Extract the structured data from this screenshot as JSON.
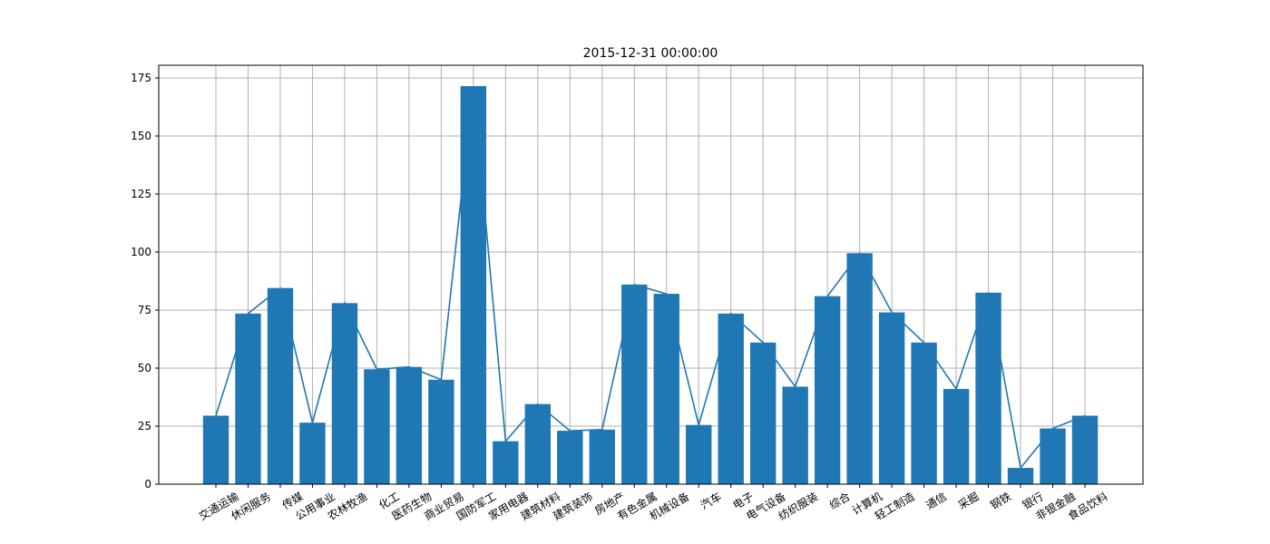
{
  "chart_data": {
    "type": "bar",
    "title": "2015-12-31 00:00:00",
    "xlabel": "",
    "ylabel": "",
    "categories": [
      "交通运输",
      "休闲服务",
      "传媒",
      "公用事业",
      "农林牧渔",
      "化工",
      "医药生物",
      "商业贸易",
      "国防军工",
      "家用电器",
      "建筑材料",
      "建筑装饰",
      "房地产",
      "有色金属",
      "机械设备",
      "汽车",
      "电子",
      "电气设备",
      "纺织服装",
      "综合",
      "计算机",
      "轻工制造",
      "通信",
      "采掘",
      "钢铁",
      "银行",
      "非银金融",
      "食品饮料"
    ],
    "values": [
      29.5,
      73.5,
      84.5,
      26.5,
      78.0,
      49.5,
      50.5,
      45.0,
      171.5,
      18.5,
      34.5,
      23.0,
      23.5,
      86.0,
      82.0,
      25.5,
      73.5,
      61.0,
      42.0,
      81.0,
      99.5,
      74.0,
      61.0,
      41.0,
      82.5,
      7.0,
      24.0,
      29.5
    ],
    "ylim": [
      0,
      180
    ],
    "yticks": [
      0,
      25,
      50,
      75,
      100,
      125,
      150,
      175
    ],
    "grid": true,
    "line_overlay": true,
    "tick_rotation": 30,
    "colors": {
      "bar": "#1f77b4",
      "line": "#1f77b4",
      "grid": "#b0b0b0",
      "axis": "#000000"
    }
  }
}
